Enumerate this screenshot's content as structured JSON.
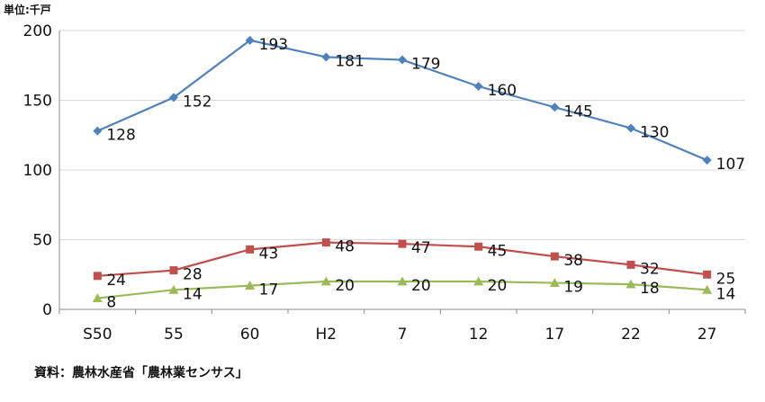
{
  "unit_label": "単位:千戸",
  "source_note": "資料：農林水産省「農林業センサス」",
  "chart_data": {
    "type": "line",
    "categories": [
      "S50",
      "55",
      "60",
      "H2",
      "7",
      "12",
      "17",
      "22",
      "27"
    ],
    "ylim": [
      0,
      200
    ],
    "yticks": [
      0,
      50,
      100,
      150,
      200
    ],
    "grid": true,
    "series": [
      {
        "color": "#4f81bd",
        "marker": "diamond",
        "values": [
          128,
          152,
          193,
          181,
          179,
          160,
          145,
          130,
          107
        ]
      },
      {
        "color": "#c0504d",
        "marker": "square",
        "values": [
          24,
          28,
          43,
          48,
          47,
          45,
          38,
          32,
          25
        ]
      },
      {
        "color": "#9bbb59",
        "marker": "triangle",
        "values": [
          8,
          14,
          17,
          20,
          20,
          20,
          19,
          18,
          14
        ]
      }
    ]
  }
}
